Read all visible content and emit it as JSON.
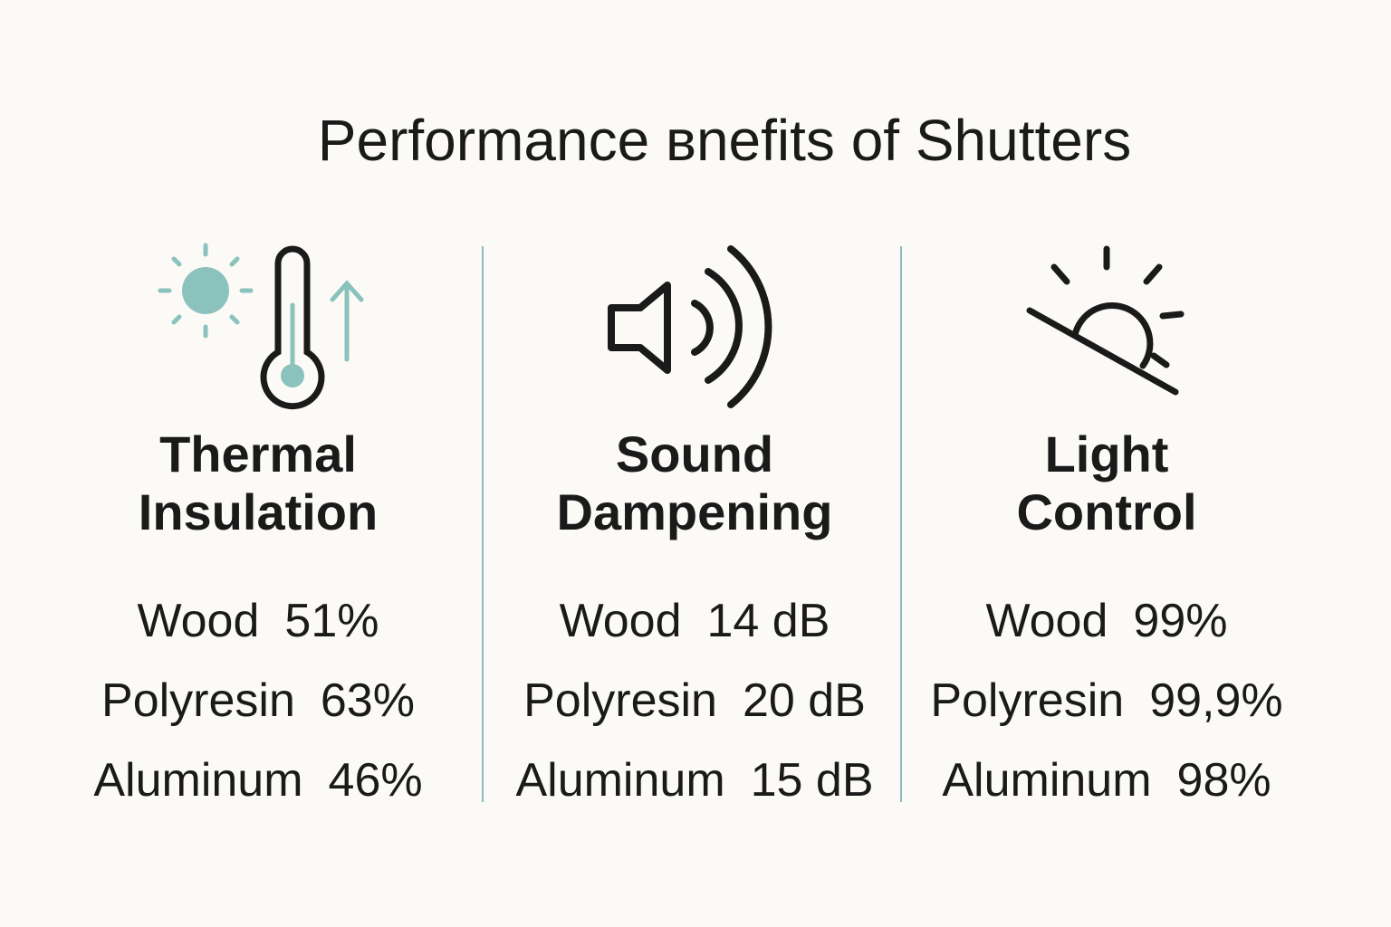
{
  "header": {
    "title": "Performance вnefits of Shutters"
  },
  "columns": [
    {
      "title": [
        "Thermal",
        "Insulation"
      ],
      "rows": [
        [
          "Wood",
          "51%"
        ],
        [
          "Polyresin",
          "63%"
        ],
        [
          "Aluminum",
          "46%"
        ]
      ]
    },
    {
      "title": [
        "Sound",
        "Dampening"
      ],
      "rows": [
        [
          "Wood",
          "14 dB"
        ],
        [
          "Polyresin",
          "20 dB"
        ],
        [
          "Aluminum",
          "15 dB"
        ]
      ]
    },
    {
      "title": [
        "Light",
        "Control"
      ],
      "rows": [
        [
          "Wood",
          "99%"
        ],
        [
          "Polyresin",
          "99,9%"
        ],
        [
          "Aluminum",
          "98%"
        ]
      ]
    }
  ]
}
